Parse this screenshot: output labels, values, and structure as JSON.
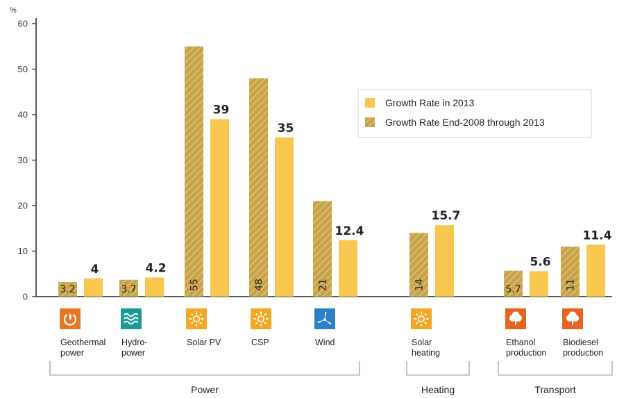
{
  "chart_data": {
    "type": "bar",
    "unit_label": "%",
    "ylim": [
      0,
      60
    ],
    "yticks": [
      "0",
      "10",
      "20",
      "30",
      "40",
      "50",
      "60"
    ],
    "grid": false,
    "legend_position": "top-right",
    "categories": [
      {
        "id": "geothermal",
        "label_lines": [
          "Geothermal",
          "power"
        ],
        "icon": "geothermal-icon",
        "icon_color": "#e87722",
        "group": "power"
      },
      {
        "id": "hydro",
        "label_lines": [
          "Hydro-",
          "power"
        ],
        "icon": "hydropower-icon",
        "icon_color": "#1a9a98",
        "group": "power"
      },
      {
        "id": "solar-pv",
        "label_lines": [
          "Solar PV"
        ],
        "icon": "sun-icon",
        "icon_color": "#f5a623",
        "group": "power"
      },
      {
        "id": "csp",
        "label_lines": [
          "CSP"
        ],
        "icon": "sun-icon",
        "icon_color": "#f5a623",
        "group": "power"
      },
      {
        "id": "wind",
        "label_lines": [
          "Wind"
        ],
        "icon": "wind-turbine-icon",
        "icon_color": "#2b7fcb",
        "group": "power"
      },
      {
        "id": "solar-heating",
        "label_lines": [
          "Solar",
          "heating"
        ],
        "icon": "sun-icon",
        "icon_color": "#f5a623",
        "group": "heating"
      },
      {
        "id": "ethanol",
        "label_lines": [
          "Ethanol",
          "production"
        ],
        "icon": "leaf-icon",
        "icon_color": "#e8641e",
        "group": "transport"
      },
      {
        "id": "biodiesel",
        "label_lines": [
          "Biodiesel",
          "production"
        ],
        "icon": "leaf-icon",
        "icon_color": "#e8641e",
        "group": "transport"
      }
    ],
    "series": [
      {
        "name": "Growth Rate End-2008 through 2013",
        "style": "hatched",
        "color": "#c9a34a",
        "values": [
          3.2,
          3.7,
          55,
          48,
          21,
          14,
          5.7,
          11
        ],
        "labels": [
          "3.2",
          "3.7",
          "55",
          "48",
          "21",
          "14",
          "5.7",
          "11"
        ]
      },
      {
        "name": "Growth Rate in 2013",
        "style": "solid",
        "color": "#f9c74f",
        "values": [
          4,
          4.2,
          39,
          35,
          12.4,
          15.7,
          5.6,
          11.4
        ],
        "labels": [
          "4",
          "4.2",
          "39",
          "35",
          "12.4",
          "15.7",
          "5.6",
          "11.4"
        ]
      }
    ],
    "legend": [
      {
        "label": "Growth Rate in 2013",
        "style": "solid"
      },
      {
        "label": "Growth Rate End-2008 through 2013",
        "style": "hatched"
      }
    ],
    "groups": [
      {
        "id": "power",
        "label": "Power"
      },
      {
        "id": "heating",
        "label": "Heating"
      },
      {
        "id": "transport",
        "label": "Transport"
      }
    ]
  }
}
